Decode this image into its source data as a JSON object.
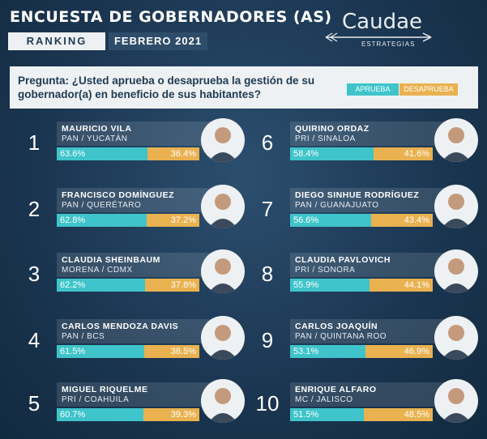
{
  "header": {
    "title": "ENCUESTA DE GOBERNADORES (AS)",
    "ranking_label": "RANKING",
    "date_label": "FEBRERO 2021",
    "logo_name": "Caudae",
    "logo_sub": "ESTRATEGIAS"
  },
  "question": {
    "text": "Pregunta: ¿Usted aprueba o desaprueba la gestión de su gobernador(a) en beneficio de sus habitantes?",
    "legend_approve": "APRUEBA",
    "legend_disapprove": "DESAPRUEBA"
  },
  "colors": {
    "approve": "#3ec4ca",
    "disapprove": "#e9b14f",
    "background": "#1a3550"
  },
  "chart_data": {
    "type": "bar",
    "title": "ENCUESTA DE GOBERNADORES (AS)",
    "legend": [
      "APRUEBA",
      "DESAPRUEBA"
    ],
    "items": [
      {
        "rank": "1",
        "name": "MAURICIO VILA",
        "party": "PAN / YUCATÁN",
        "approve": 63.6,
        "disapprove": 36.4,
        "approve_label": "63.6%",
        "disapprove_label": "36.4%"
      },
      {
        "rank": "2",
        "name": "FRANCISCO DOMÍNGUEZ",
        "party": "PAN / QUERÉTARO",
        "approve": 62.8,
        "disapprove": 37.2,
        "approve_label": "62.8%",
        "disapprove_label": "37.2%"
      },
      {
        "rank": "3",
        "name": "CLAUDIA SHEINBAUM",
        "party": "MORENA / CDMX",
        "approve": 62.2,
        "disapprove": 37.8,
        "approve_label": "62.2%",
        "disapprove_label": "37.8%"
      },
      {
        "rank": "4",
        "name": "CARLOS MENDOZA DAVIS",
        "party": "PAN / BCS",
        "approve": 61.5,
        "disapprove": 38.5,
        "approve_label": "61.5%",
        "disapprove_label": "38.5%"
      },
      {
        "rank": "5",
        "name": "MIGUEL RIQUELME",
        "party": "PRI / COAHUILA",
        "approve": 60.7,
        "disapprove": 39.3,
        "approve_label": "60.7%",
        "disapprove_label": "39.3%"
      },
      {
        "rank": "6",
        "name": "QUIRINO ORDAZ",
        "party": "PRI / SINALOA",
        "approve": 58.4,
        "disapprove": 41.6,
        "approve_label": "58.4%",
        "disapprove_label": "41.6%"
      },
      {
        "rank": "7",
        "name": "DIEGO SINHUE RODRÍGUEZ",
        "party": "PAN / GUANAJUATO",
        "approve": 56.6,
        "disapprove": 43.4,
        "approve_label": "56.6%",
        "disapprove_label": "43.4%"
      },
      {
        "rank": "8",
        "name": "CLAUDIA PAVLOVICH",
        "party": "PRI / SONORA",
        "approve": 55.9,
        "disapprove": 44.1,
        "approve_label": "55.9%",
        "disapprove_label": "44.1%"
      },
      {
        "rank": "9",
        "name": "CARLOS JOAQUÍN",
        "party": "PAN / QUINTANA ROO",
        "approve": 53.1,
        "disapprove": 46.9,
        "approve_label": "53.1%",
        "disapprove_label": "46.9%"
      },
      {
        "rank": "10",
        "name": "ENRIQUE ALFARO",
        "party": "MC / JALISCO",
        "approve": 51.5,
        "disapprove": 48.5,
        "approve_label": "51.5%",
        "disapprove_label": "48.5%"
      }
    ]
  }
}
